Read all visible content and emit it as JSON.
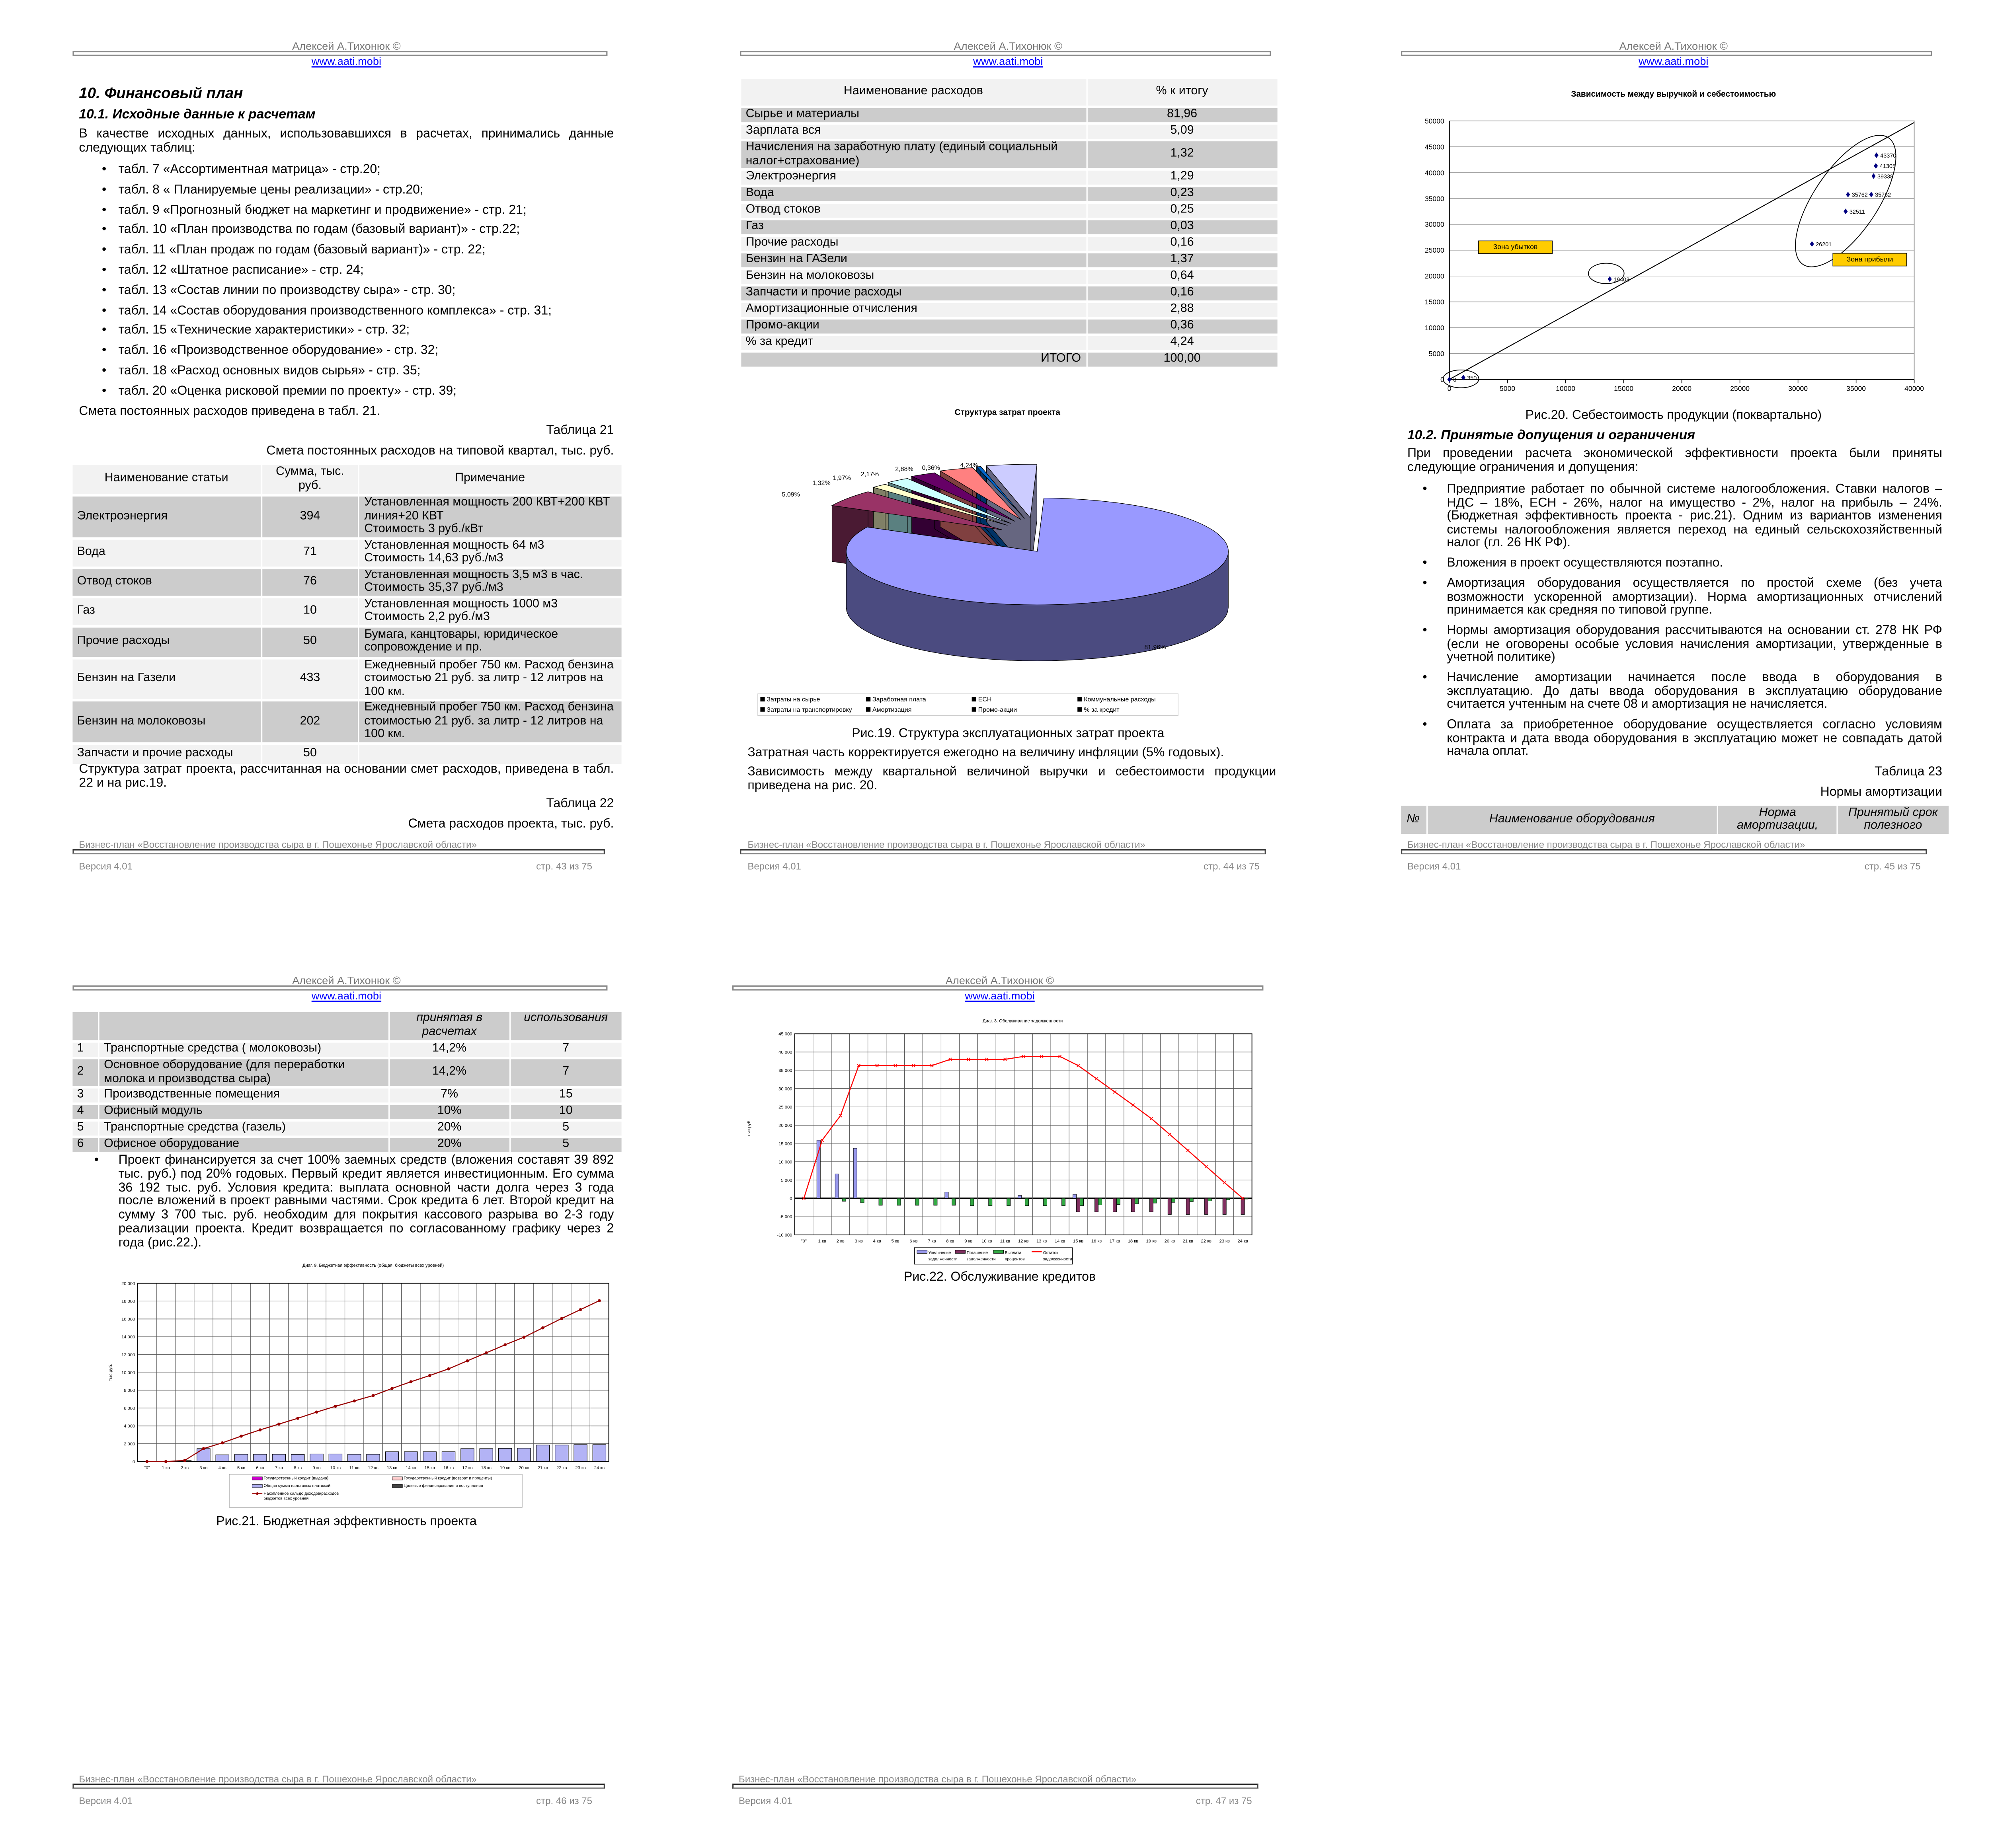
{
  "header": {
    "author": "Алексей А.Тихонюк ©",
    "link": "www.aati.mobi"
  },
  "footer": {
    "doc_title": "Бизнес-план «Восстановление производства сыра в г. Пошехонье Ярославской области»",
    "version": "Версия 4.01"
  },
  "page43": {
    "h1": "10. Финансовый план",
    "h2": "10.1. Исходные данные к расчетам",
    "intro": "В качестве исходных данных, использовавшихся в расчетах, принимались данные следующих таблиц:",
    "bullets": [
      "табл. 7 «Ассортиментная матрица» - стр.20;",
      "табл. 8 « Планируемые цены реализации» - стр.20;",
      "табл. 9 «Прогнозный бюджет на маркетинг и продвижение» - стр. 21;",
      "табл. 10 «План производства по годам (базовый вариант)» - стр.22;",
      "табл. 11 «План продаж по годам (базовый вариант)» - стр. 22;",
      "табл. 12 «Штатное расписание» - стр. 24;",
      "табл. 13 «Состав линии по производству сыра» - стр. 30;",
      "табл. 14 «Состав оборудования производственного комплекса» - стр. 31;",
      "табл. 15 «Технические характеристики» - стр. 32;",
      "табл. 16 «Производственное оборудование» - стр. 32;",
      "табл. 18 «Расход основных видов сырья» - стр. 35;",
      "табл. 20 «Оценка рисковой премии по проекту» - стр. 39;"
    ],
    "after_list": "Смета постоянных расходов приведена в табл. 21.",
    "table21_label": "Таблица 21",
    "table21_title": "Смета постоянных расходов на типовой квартал, тыс. руб.",
    "table21": {
      "columns": [
        "Наименование статьи",
        "Сумма, тыс. руб.",
        "Примечание"
      ],
      "rows": [
        [
          "Электроэнергия",
          "394",
          "Установленная мощность 200 КВТ+200 КВТ линия+20 КВТ\nСтоимость 3 руб./кВт"
        ],
        [
          "Вода",
          "71",
          "Установленная мощность 64 м3\nСтоимость 14,63 руб./м3"
        ],
        [
          "Отвод стоков",
          "76",
          "Установленная мощность 3,5 м3 в час.\nСтоимость 35,37 руб./м3"
        ],
        [
          "Газ",
          "10",
          "Установленная мощность 1000 м3\nСтоимость 2,2 руб./м3"
        ],
        [
          "Прочие расходы",
          "50",
          "Бумага, канцтовары, юридическое сопровождение и пр."
        ],
        [
          "Бензин на Газели",
          "433",
          "Ежедневный пробег 750  км. Расход бензина стоимостью 21 руб. за литр - 12 литров на 100 км."
        ],
        [
          "Бензин на молоковозы",
          "202",
          "Ежедневный пробег 750  км. Расход бензина стоимостью 21 руб. за литр - 12 литров на 100 км."
        ],
        [
          "Запчасти и прочие расходы",
          "50",
          ""
        ]
      ]
    },
    "after_table": "Структура затрат проекта, рассчитанная на основании смет расходов, приведена в табл. 22 и на рис.19.",
    "table22_label": "Таблица 22",
    "table22_title": "Смета расходов проекта, тыс. руб.",
    "page_number": "стр. 43 из 75"
  },
  "page44": {
    "table22": {
      "columns": [
        "Наименование расходов",
        "% к итогу"
      ],
      "rows": [
        [
          "Сырье и материалы",
          "81,96"
        ],
        [
          "Зарплата вся",
          "5,09"
        ],
        [
          "Начисления на заработную плату (единый социальный налог+страхование)",
          "1,32"
        ],
        [
          "Электроэнергия",
          "1,29"
        ],
        [
          "Вода",
          "0,23"
        ],
        [
          "Отвод стоков",
          "0,25"
        ],
        [
          "Газ",
          "0,03"
        ],
        [
          "Прочие расходы",
          "0,16"
        ],
        [
          "Бензин на ГАЗели",
          "1,37"
        ],
        [
          "Бензин на молоковозы",
          "0,64"
        ],
        [
          "Запчасти и прочие расходы",
          "0,16"
        ],
        [
          "Амортизационные отчисления",
          "2,88"
        ],
        [
          "Промо-акции",
          "0,36"
        ],
        [
          "% за кредит",
          "4,24"
        ]
      ],
      "total_label": "ИТОГО",
      "total_value": "100,00"
    },
    "fig19_caption": "Рис.19. Структура эксплуатационных затрат проекта",
    "text1": "Затратная часть корректируется ежегодно на величину инфляции (5% годовых).",
    "text2": "Зависимость между квартальной величиной выручки и себестоимости продукции приведена на рис. 20.",
    "page_number": "стр. 44 из 75"
  },
  "page45": {
    "fig20_caption": "Рис.20. Себестоимость продукции (поквартально)",
    "h2": "10.2. Принятые допущения и ограничения",
    "intro": "При проведении расчета экономической эффективности проекта были приняты следующие ограничения и допущения:",
    "bullets": [
      "Предприятие работает по обычной системе налогообложения. Ставки налогов – НДС – 18%, ЕСН - 26%, налог на имущество - 2%, налог на прибыль – 24%. (Бюджетная эффективность проекта - рис.21). Одним из вариантов изменения системы налогообложения является переход на единый сельскохозяйственный налог (гл. 26 НК РФ).",
      "Вложения в проект осуществляются поэтапно.",
      "Амортизация оборудования осуществляется по простой схеме (без учета возможности ускоренной амортизации). Норма амортизационных отчислений принимается как средняя по типовой группе.",
      "Нормы амортизация оборудования рассчитываются на основании ст. 278 НК РФ (если не оговорены особые условия начисления амортизации, утвержденные в учетной политике)",
      "Начисление амортизации начинается после ввода в оборудования в эксплуатацию. До  даты ввода оборудования в эксплуатацию оборудование считается учтенным на счете 08 и амортизация не начисляется.",
      "Оплата за приобретенное оборудование осуществляется согласно условиям контракта и дата ввода оборудования в эксплуатацию может не совпадать  датой начала оплат."
    ],
    "table23_label": "Таблица 23",
    "table23_title": "Нормы амортизации",
    "table23_columns": [
      "№",
      "Наименование оборудования",
      "Норма амортизации,",
      "Принятый срок полезного"
    ],
    "page_number": "стр. 45 из 75"
  },
  "page46": {
    "table23_cont": {
      "columns": [
        "",
        "",
        "принятая в расчетах",
        "использования"
      ],
      "rows": [
        [
          "1",
          "Транспортные средства ( молоковозы)",
          "14,2%",
          "7"
        ],
        [
          "2",
          "Основное оборудование (для переработки молока и производства сыра)",
          "14,2%",
          "7"
        ],
        [
          "3",
          "Производственные помещения",
          "7%",
          "15"
        ],
        [
          "4",
          "Офисный модуль",
          "10%",
          "10"
        ],
        [
          "5",
          "Транспортные средства (газель)",
          "20%",
          "5"
        ],
        [
          "6",
          "Офисное оборудование",
          "20%",
          "5"
        ]
      ]
    },
    "bullet": "Проект финансируется за счет 100% заемных средств (вложения составят 39 892 тыс. руб.) под 20% годовых. Первый кредит является инвестиционным. Его сумма 36 192  тыс. руб. Условия кредита: выплата основной части долга через 3 года после вложений в проект  равными частями. Срок кредита 6 лет. Второй кредит на сумму 3 700 тыс. руб. необходим для покрытия кассового разрыва во 2-3 году реализации проекта. Кредит возвращается по согласованному графику через 2 года (рис.22.).",
    "fig21_caption": "Рис.21. Бюджетная эффективность проекта",
    "page_number": "стр. 46 из 75"
  },
  "page47": {
    "fig22_caption": "Рис.22. Обслуживание кредитов",
    "page_number": "стр. 47 из 75"
  },
  "chart_data": [
    {
      "type": "pie",
      "title": "Структура затрат проекта",
      "values": [
        81.96,
        5.09,
        1.32,
        1.97,
        2.17,
        2.88,
        0.36,
        4.24
      ],
      "labels": [
        "81,96%",
        "5,09%",
        "1,32%",
        "1,97%",
        "2,17%",
        "2,88%",
        "0,36%",
        "4,24%"
      ],
      "colors": [
        "#9999ff",
        "#993366",
        "#ffffcc",
        "#ccffff",
        "#660066",
        "#ff8080",
        "#0066cc",
        "#ccccff"
      ],
      "legend": [
        "Затраты на сырье",
        "Заработная плата",
        "ЕСН",
        "Коммунальные расходы",
        "Затраты на транспортировку",
        "Амортизация",
        "Промо-акции",
        "% за кредит"
      ],
      "legend_placement": "bottom",
      "style": "3d-exploded"
    },
    {
      "type": "scatter",
      "title": "Зависимость между выручкой и себестоимостью",
      "points": [
        {
          "x": 0,
          "y": 0,
          "label": "0"
        },
        {
          "x": 1200,
          "y": 350,
          "label": "350"
        },
        {
          "x": 13800,
          "y": 19403,
          "label": "19403"
        },
        {
          "x": 31200,
          "y": 26201,
          "label": "26201"
        },
        {
          "x": 34100,
          "y": 32511,
          "label": "32511"
        },
        {
          "x": 34300,
          "y": 35762,
          "label": "35762"
        },
        {
          "x": 36300,
          "y": 35762,
          "label": "35762"
        },
        {
          "x": 36500,
          "y": 39338,
          "label": "39338"
        },
        {
          "x": 36700,
          "y": 41305,
          "label": "41305"
        },
        {
          "x": 36750,
          "y": 43370,
          "label": "43370"
        }
      ],
      "reference_line": {
        "from": [
          0,
          0
        ],
        "to": [
          40000,
          49700
        ]
      },
      "annotations": [
        "Зона убытков",
        "Зона прибыли"
      ],
      "annotation_color": "#ffcc00",
      "point_color": "#000080",
      "xlim": [
        0,
        40000
      ],
      "ylim": [
        0,
        50000
      ],
      "xticks": [
        "0",
        "5000",
        "10000",
        "15000",
        "20000",
        "25000",
        "30000",
        "35000",
        "40000"
      ],
      "yticks": [
        "0",
        "5000",
        "10000",
        "15000",
        "20000",
        "25000",
        "30000",
        "35000",
        "40000",
        "45000",
        "50000"
      ],
      "grid": true
    },
    {
      "type": "bar",
      "title": "Диаг. 9. Бюджетная эффективность (общая, бюджеты всех уровней)",
      "ylabel": "тыс.руб.",
      "categories": [
        "\"0\"",
        "1 кв",
        "2 кв",
        "3 кв",
        "4 кв",
        "5 кв",
        "6 кв",
        "7 кв",
        "8 кв",
        "9 кв",
        "10 кв",
        "11 кв",
        "12 кв",
        "13 кв",
        "14 кв",
        "15 кв",
        "16 кв",
        "17 кв",
        "18 кв",
        "19 кв",
        "20 кв",
        "21 кв",
        "22 кв",
        "23 кв",
        "24 кв"
      ],
      "series": [
        {
          "name": "Общая сумма налоговых платежей",
          "kind": "bar",
          "color": "#b3b3f5",
          "values": [
            0,
            0,
            100,
            1450,
            750,
            820,
            820,
            820,
            800,
            850,
            850,
            820,
            820,
            1100,
            1100,
            1100,
            1100,
            1450,
            1450,
            1480,
            1500,
            1850,
            1850,
            1900,
            1900
          ]
        },
        {
          "name": "Накопленное сальдо доходов/расходов бюджетов всех уровней",
          "kind": "line",
          "color": "#990000",
          "values": [
            0,
            0,
            120,
            1450,
            2100,
            2850,
            3550,
            4200,
            4850,
            5550,
            6200,
            6800,
            7400,
            8200,
            8950,
            9650,
            10400,
            11300,
            12200,
            13100,
            13950,
            15000,
            16050,
            17050,
            18050
          ]
        }
      ],
      "legend": [
        "Государственный кредит (выдача)",
        "Государственный кредит (возврат и проценты)",
        "Общая сумма налоговых платежей",
        "Целевые финансирование и поступления",
        "Накопленное сальдо доходов/расходов",
        "бюджетов всех уровней"
      ],
      "ylim": [
        0,
        20000
      ],
      "yticks": [
        "0",
        "2 000",
        "4 000",
        "6 000",
        "8 000",
        "10 000",
        "12 000",
        "14 000",
        "16 000",
        "18 000",
        "20 000"
      ],
      "grid": true,
      "legend_placement": "bottom"
    },
    {
      "type": "bar",
      "title": "Диаг. 3. Обслуживание задолженности",
      "ylabel": "тыс.руб.",
      "categories": [
        "\"0\"",
        "1 кв",
        "2 кв",
        "3 кв",
        "4 кв",
        "5 кв",
        "6 кв",
        "7 кв",
        "8 кв",
        "9 кв",
        "10 кв",
        "11 кв",
        "12 кв",
        "13 кв",
        "14 кв",
        "15 кв",
        "16 кв",
        "17 кв",
        "18 кв",
        "19 кв",
        "20 кв",
        "21 кв",
        "22 кв",
        "23 кв",
        "24 кв"
      ],
      "series": [
        {
          "name": "Увеличение задолженности",
          "kind": "bar",
          "color": "#9999ee",
          "values": [
            0,
            15900,
            6700,
            13700,
            0,
            0,
            0,
            0,
            1700,
            0,
            0,
            0,
            800,
            0,
            0,
            1100,
            0,
            0,
            0,
            0,
            0,
            0,
            0,
            0,
            0
          ]
        },
        {
          "name": "Погашение задолженности",
          "kind": "bar",
          "color": "#803060",
          "values": [
            0,
            0,
            0,
            0,
            0,
            0,
            0,
            0,
            0,
            0,
            0,
            0,
            0,
            0,
            0,
            -3700,
            -3700,
            -3700,
            -3700,
            -3700,
            -4400,
            -4400,
            -4400,
            -4400,
            -4400
          ]
        },
        {
          "name": "Выплата процентов",
          "kind": "bar",
          "color": "#33aa44",
          "values": [
            0,
            0,
            -800,
            -1200,
            -1900,
            -1900,
            -1900,
            -1900,
            -1900,
            -2000,
            -2000,
            -2000,
            -2000,
            -2000,
            -2000,
            -2000,
            -1800,
            -1700,
            -1500,
            -1300,
            -1100,
            -900,
            -700,
            -400,
            -200
          ]
        },
        {
          "name": "Остаток задолженности",
          "kind": "line",
          "color": "#ff0000",
          "values": [
            0,
            15900,
            22600,
            36300,
            36300,
            36300,
            36300,
            36300,
            38000,
            38000,
            38000,
            38000,
            38800,
            38800,
            38800,
            36300,
            32700,
            29100,
            25500,
            21800,
            17500,
            13100,
            8700,
            4300,
            0
          ]
        }
      ],
      "legend": [
        "Увеличение",
        "задолженности",
        "Погашение",
        "задолженности",
        "Выплата",
        "процентов",
        "Остаток",
        "задолженности"
      ],
      "ylim": [
        -10000,
        45000
      ],
      "yticks": [
        "-10 000",
        "-5 000",
        "0",
        "5 000",
        "10 000",
        "15 000",
        "20 000",
        "25 000",
        "30 000",
        "35 000",
        "40 000",
        "45 000"
      ],
      "grid": true,
      "legend_placement": "bottom"
    }
  ]
}
